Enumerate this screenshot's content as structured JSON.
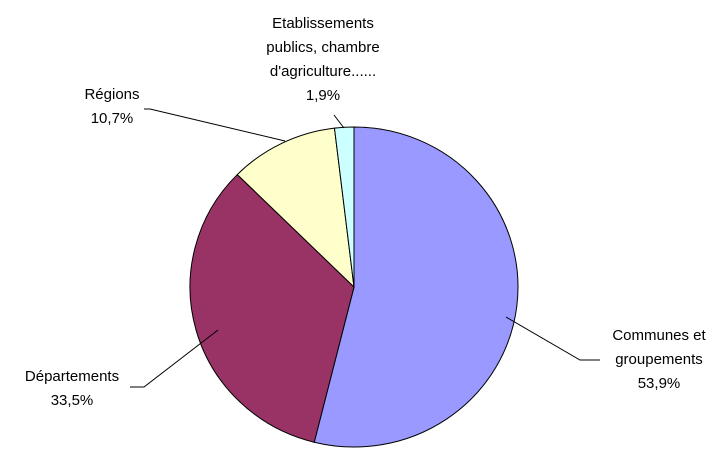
{
  "chart_data": {
    "type": "pie",
    "start_angle_deg": 0,
    "direction": "clockwise",
    "slices": [
      {
        "label_lines": [
          "Communes et",
          "groupements"
        ],
        "value_text": "53,9%",
        "value": 53.9,
        "color": "#9999ff"
      },
      {
        "label_lines": [
          "Départements"
        ],
        "value_text": "33,5%",
        "value": 33.5,
        "color": "#993366"
      },
      {
        "label_lines": [
          "Régions"
        ],
        "value_text": "10,7%",
        "value": 10.7,
        "color": "#ffffcc"
      },
      {
        "label_lines": [
          "Etablissements",
          "publics, chambre",
          "d'agriculture......"
        ],
        "value_text": "1,9%",
        "value": 1.9,
        "color": "#ccffff"
      }
    ]
  }
}
